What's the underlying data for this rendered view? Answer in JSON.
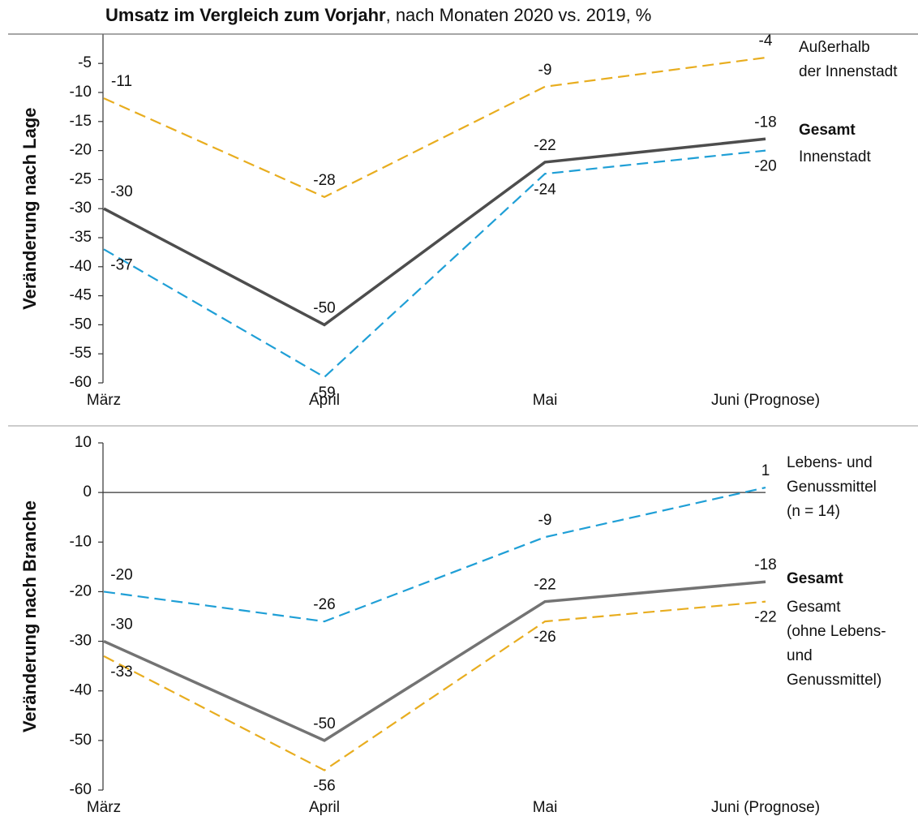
{
  "title_bold": "Umsatz im Vergleich zum Vorjahr",
  "title_rest": ", nach Monaten 2020 vs. 2019, %",
  "chart_data": [
    {
      "type": "line",
      "ylabel": "Veränderung nach Lage",
      "categories": [
        "März",
        "April",
        "Mai",
        "Juni (Prognose)"
      ],
      "ylim": [
        -60,
        0
      ],
      "yticks": [
        -60,
        -55,
        -50,
        -45,
        -40,
        -35,
        -30,
        -25,
        -20,
        -15,
        -10,
        -5
      ],
      "series": [
        {
          "name": "Außerhalb\nder Innenstadt",
          "color": "#e8ad1f",
          "dashed": true,
          "bold": false,
          "values": [
            -11,
            -28,
            -9,
            -4
          ]
        },
        {
          "name": "Gesamt",
          "color": "#4d4d4d",
          "dashed": false,
          "bold": true,
          "values": [
            -30,
            -50,
            -22,
            -18
          ]
        },
        {
          "name": "Innenstadt",
          "color": "#1f9fd6",
          "dashed": true,
          "bold": false,
          "values": [
            -37,
            -59,
            -24,
            -20
          ]
        }
      ]
    },
    {
      "type": "line",
      "ylabel": "Veränderung nach Branche",
      "categories": [
        "März",
        "April",
        "Mai",
        "Juni (Prognose)"
      ],
      "ylim": [
        -60,
        10
      ],
      "yticks": [
        -60,
        -50,
        -40,
        -30,
        -20,
        -10,
        0,
        10
      ],
      "series": [
        {
          "name": "Lebens- und\nGenussmittel\n(n = 14)",
          "color": "#1f9fd6",
          "dashed": true,
          "bold": false,
          "values": [
            -20,
            -26,
            -9,
            1
          ]
        },
        {
          "name": "Gesamt",
          "color": "#737373",
          "dashed": false,
          "bold": true,
          "values": [
            -30,
            -50,
            -22,
            -18
          ]
        },
        {
          "name": "Gesamt\n(ohne Lebens-\nund\nGenussmittel)",
          "color": "#e8ad1f",
          "dashed": true,
          "bold": false,
          "values": [
            -33,
            -56,
            -26,
            -22
          ]
        }
      ]
    }
  ]
}
